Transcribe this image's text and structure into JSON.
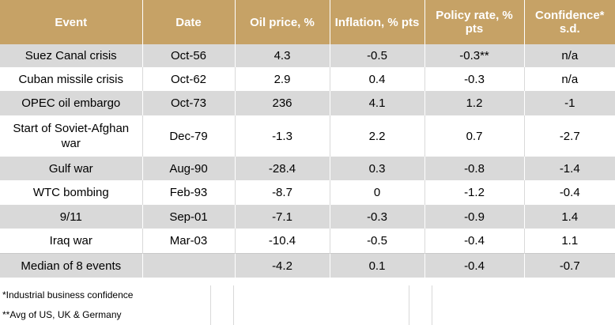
{
  "table": {
    "headers": [
      "Event",
      "Date",
      "Oil price, %",
      "Inflation, % pts",
      "Policy rate, % pts",
      "Confidence* s.d."
    ],
    "rows": [
      [
        "Suez Canal crisis",
        "Oct-56",
        "4.3",
        "-0.5",
        "-0.3**",
        "n/a"
      ],
      [
        "Cuban missile crisis",
        "Oct-62",
        "2.9",
        "0.4",
        "-0.3",
        "n/a"
      ],
      [
        "OPEC oil embargo",
        "Oct-73",
        "236",
        "4.1",
        "1.2",
        "-1"
      ],
      [
        "Start of Soviet-Afghan war",
        "Dec-79",
        "-1.3",
        "2.2",
        "0.7",
        "-2.7"
      ],
      [
        "Gulf war",
        "Aug-90",
        "-28.4",
        "0.3",
        "-0.8",
        "-1.4"
      ],
      [
        "WTC bombing",
        "Feb-93",
        "-8.7",
        "0",
        "-1.2",
        "-0.4"
      ],
      [
        "9/11",
        "Sep-01",
        "-7.1",
        "-0.3",
        "-0.9",
        "1.4"
      ],
      [
        "Iraq war",
        "Mar-03",
        "-10.4",
        "-0.5",
        "-0.4",
        "1.1"
      ],
      [
        "Median of 8 events",
        "",
        "-4.2",
        "0.1",
        "-0.4",
        "-0.7"
      ]
    ]
  },
  "footnotes": {
    "confidence": "*Industrial business confidence",
    "policy": "**Avg of US, UK & Germany"
  },
  "colors": {
    "header_bg": "#c6a266",
    "shaded_row": "#d9d9d9"
  }
}
